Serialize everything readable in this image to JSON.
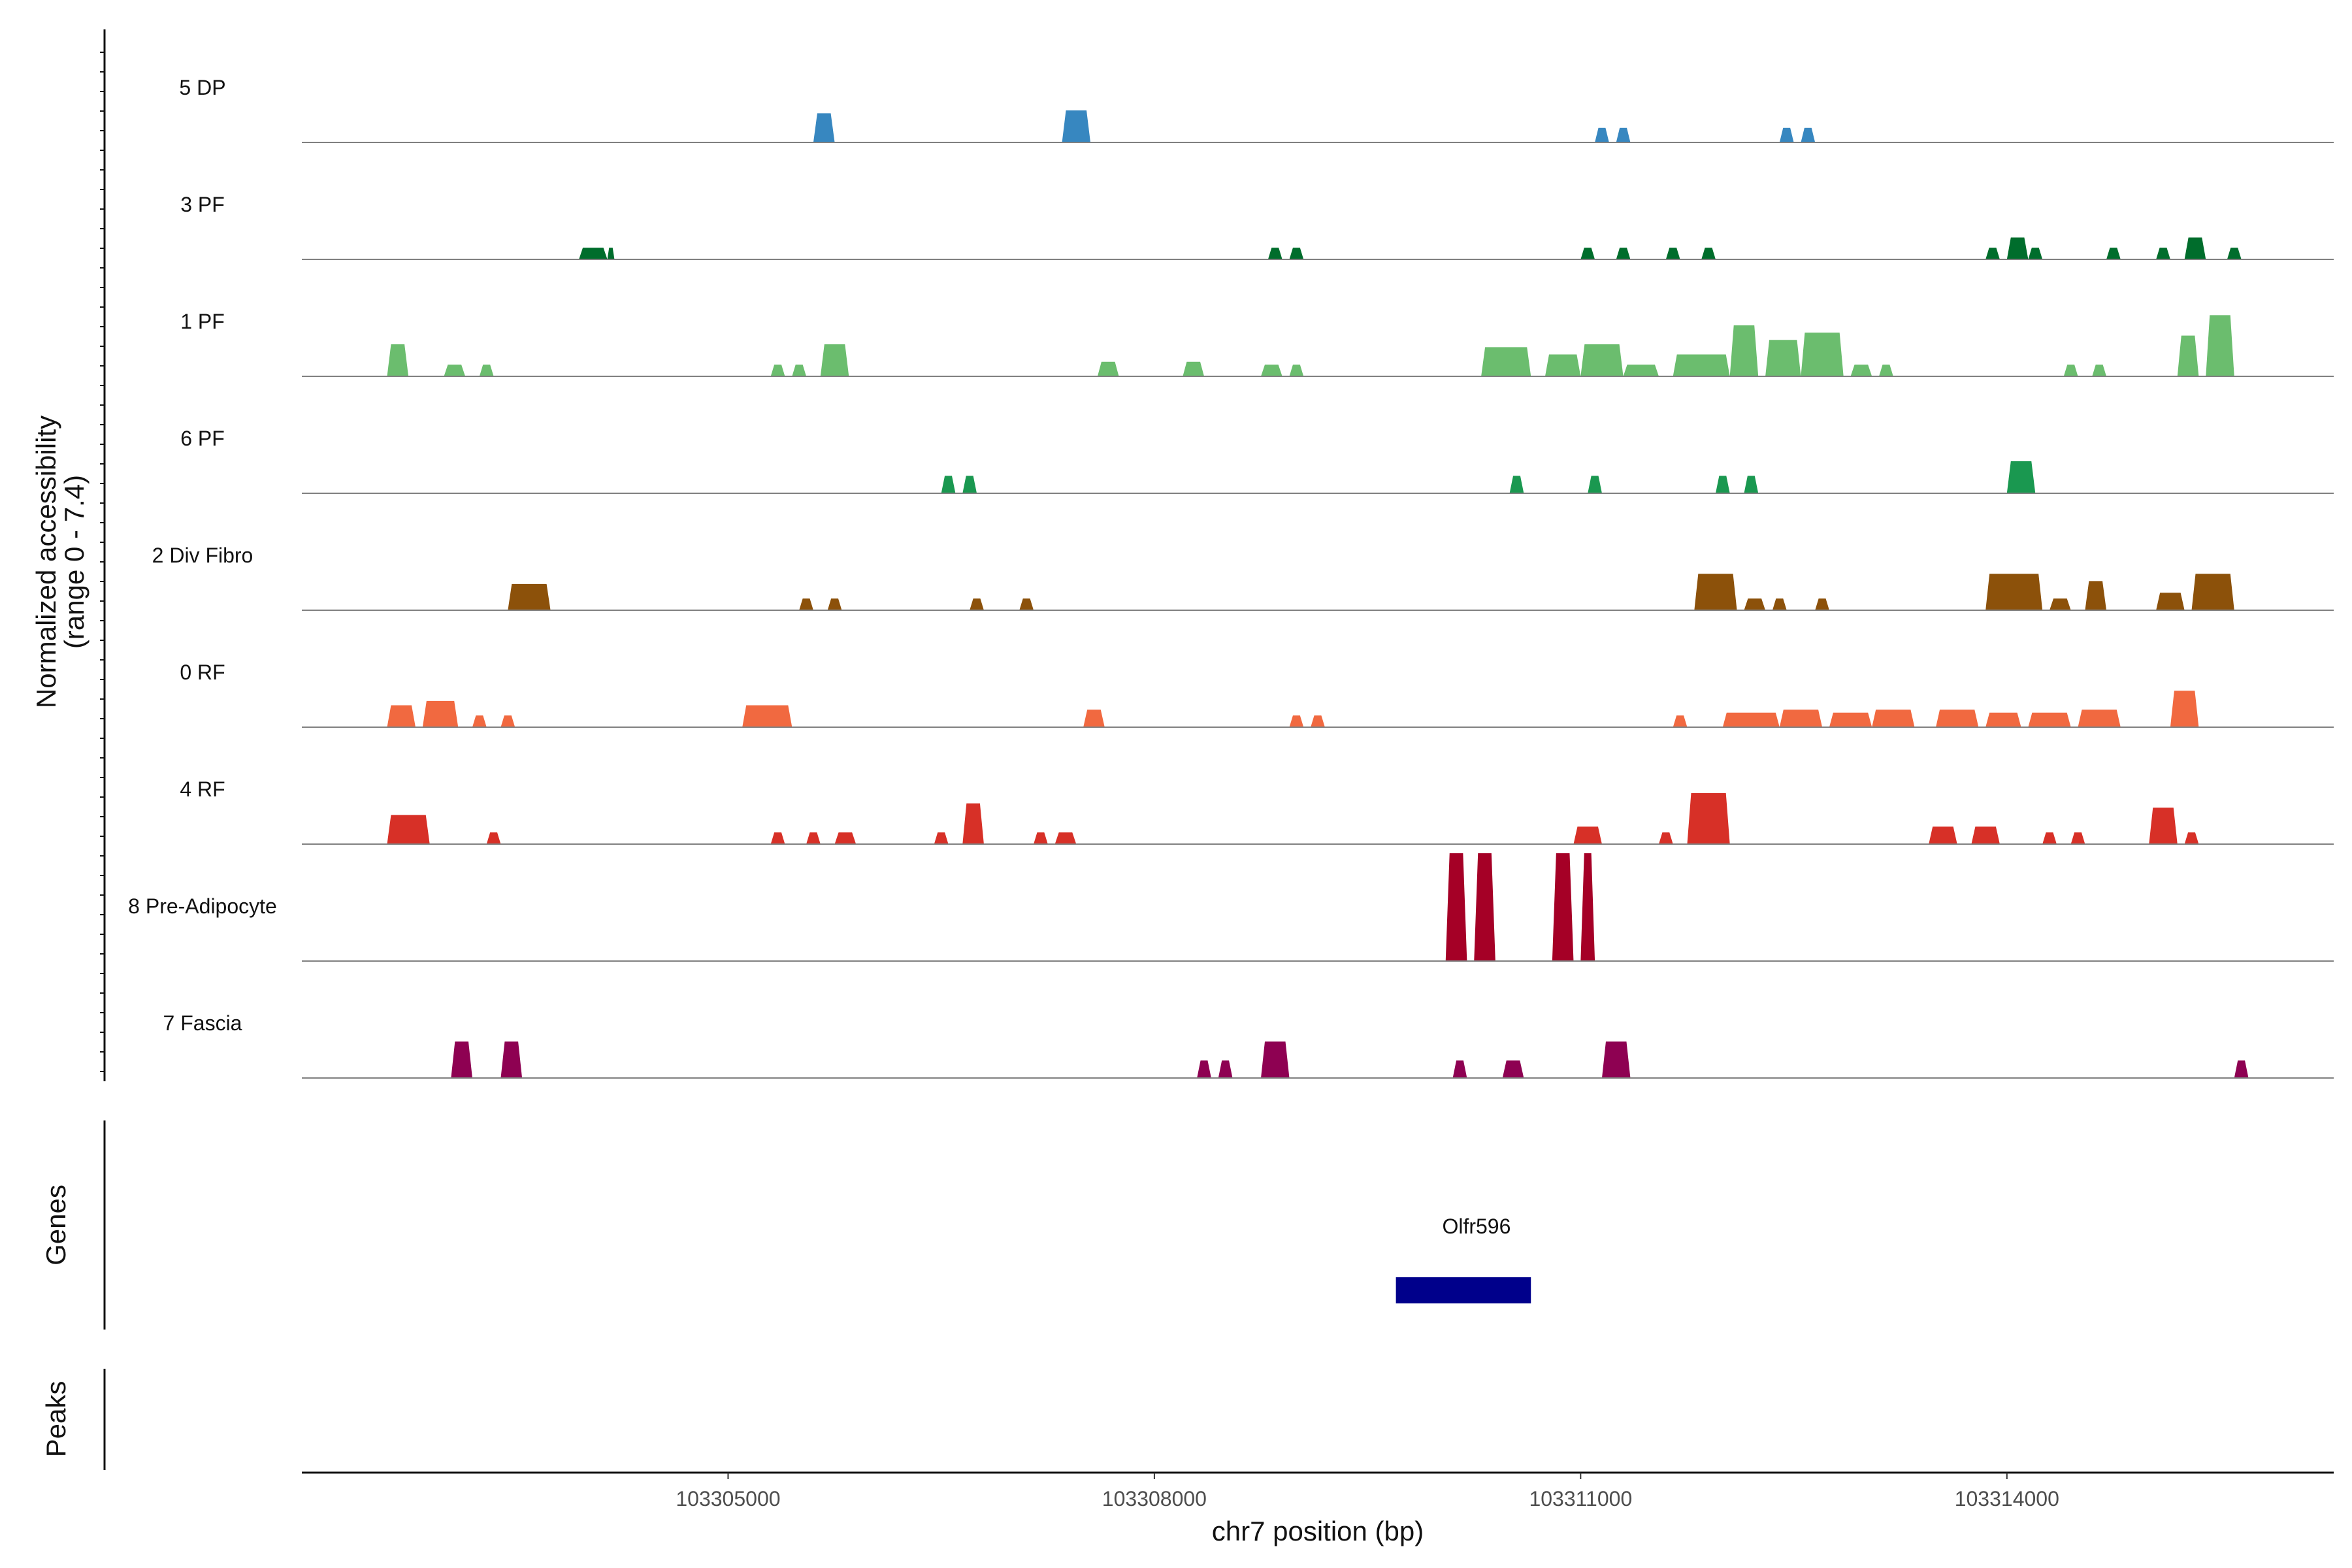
{
  "chart_data": {
    "type": "area",
    "description_type": "genome coverage tracks",
    "xlabel": "chr7 position (bp)",
    "xlim": [
      103302000,
      103316300
    ],
    "xticks": [
      103305000,
      103308000,
      103311000,
      103314000
    ],
    "xtick_labels": [
      "103305000",
      "103308000",
      "103311000",
      "103314000"
    ],
    "ylabel_line1": "Normalized accessibility",
    "ylabel_line2": "(range 0 - 7.4)",
    "ylim": [
      0,
      7.4
    ],
    "panel_labels": {
      "genes": "Genes",
      "peaks": "Peaks"
    },
    "tracks": [
      {
        "name": "5 DP",
        "color": "#3787c0",
        "peaks": [
          [
            103305600,
            103305750,
            2.0
          ],
          [
            103307350,
            103307550,
            2.2
          ],
          [
            103311100,
            103311200,
            1.0
          ],
          [
            103311250,
            103311350,
            1.0
          ],
          [
            103312400,
            103312500,
            1.0
          ],
          [
            103312550,
            103312650,
            1.0
          ]
        ]
      },
      {
        "name": "3 PF",
        "color": "#006d2c",
        "peaks": [
          [
            103303950,
            103304150,
            0.8
          ],
          [
            103304150,
            103304200,
            0.8
          ],
          [
            103308800,
            103308900,
            0.8
          ],
          [
            103308950,
            103309050,
            0.8
          ],
          [
            103311000,
            103311100,
            0.8
          ],
          [
            103311250,
            103311350,
            0.8
          ],
          [
            103311600,
            103311700,
            0.8
          ],
          [
            103311850,
            103311950,
            0.8
          ],
          [
            103313850,
            103313950,
            0.8
          ],
          [
            103314000,
            103314150,
            1.5
          ],
          [
            103314150,
            103314250,
            0.8
          ],
          [
            103314700,
            103314800,
            0.8
          ],
          [
            103315050,
            103315150,
            0.8
          ],
          [
            103315250,
            103315400,
            1.5
          ],
          [
            103315550,
            103315650,
            0.8
          ]
        ]
      },
      {
        "name": "1 PF",
        "color": "#6bbd6e",
        "peaks": [
          [
            103302600,
            103302750,
            2.2
          ],
          [
            103303000,
            103303150,
            0.8
          ],
          [
            103303250,
            103303350,
            0.8
          ],
          [
            103305300,
            103305400,
            0.8
          ],
          [
            103305450,
            103305550,
            0.8
          ],
          [
            103305650,
            103305850,
            2.2
          ],
          [
            103307600,
            103307750,
            1.0
          ],
          [
            103308200,
            103308350,
            1.0
          ],
          [
            103308750,
            103308900,
            0.8
          ],
          [
            103308950,
            103309050,
            0.8
          ],
          [
            103310300,
            103310650,
            2.0
          ],
          [
            103310750,
            103311000,
            1.5
          ],
          [
            103311000,
            103311300,
            2.2
          ],
          [
            103311300,
            103311550,
            0.8
          ],
          [
            103311650,
            103312050,
            1.5
          ],
          [
            103312050,
            103312250,
            3.5
          ],
          [
            103312300,
            103312550,
            2.5
          ],
          [
            103312550,
            103312850,
            3.0
          ],
          [
            103312900,
            103313050,
            0.8
          ],
          [
            103313100,
            103313200,
            0.8
          ],
          [
            103314400,
            103314500,
            0.8
          ],
          [
            103314600,
            103314700,
            0.8
          ],
          [
            103315200,
            103315350,
            2.8
          ],
          [
            103315400,
            103315600,
            4.2
          ]
        ]
      },
      {
        "name": "6 PF",
        "color": "#1a9850",
        "peaks": [
          [
            103306500,
            103306600,
            1.2
          ],
          [
            103306650,
            103306750,
            1.2
          ],
          [
            103310500,
            103310600,
            1.2
          ],
          [
            103311050,
            103311150,
            1.2
          ],
          [
            103311950,
            103312050,
            1.2
          ],
          [
            103312150,
            103312250,
            1.2
          ],
          [
            103314000,
            103314200,
            2.2
          ]
        ]
      },
      {
        "name": "2 Div Fibro",
        "color": "#8c510a",
        "peaks": [
          [
            103303450,
            103303750,
            1.8
          ],
          [
            103305500,
            103305600,
            0.8
          ],
          [
            103305700,
            103305800,
            0.8
          ],
          [
            103306700,
            103306800,
            0.8
          ],
          [
            103307050,
            103307150,
            0.8
          ],
          [
            103311800,
            103312100,
            2.5
          ],
          [
            103312150,
            103312300,
            0.8
          ],
          [
            103312350,
            103312450,
            0.8
          ],
          [
            103312650,
            103312750,
            0.8
          ],
          [
            103313850,
            103314250,
            2.5
          ],
          [
            103314300,
            103314450,
            0.8
          ],
          [
            103314550,
            103314700,
            2.0
          ],
          [
            103315050,
            103315250,
            1.2
          ],
          [
            103315300,
            103315600,
            2.5
          ]
        ]
      },
      {
        "name": "0 RF",
        "color": "#f16940",
        "peaks": [
          [
            103302600,
            103302800,
            1.5
          ],
          [
            103302850,
            103303100,
            1.8
          ],
          [
            103303200,
            103303300,
            0.8
          ],
          [
            103303400,
            103303500,
            0.8
          ],
          [
            103305100,
            103305450,
            1.5
          ],
          [
            103307500,
            103307650,
            1.2
          ],
          [
            103308950,
            103309050,
            0.8
          ],
          [
            103309100,
            103309200,
            0.8
          ],
          [
            103311650,
            103311750,
            0.8
          ],
          [
            103312000,
            103312400,
            1.0
          ],
          [
            103312400,
            103312700,
            1.2
          ],
          [
            103312750,
            103313050,
            1.0
          ],
          [
            103313050,
            103313350,
            1.2
          ],
          [
            103313500,
            103313800,
            1.2
          ],
          [
            103313850,
            103314100,
            1.0
          ],
          [
            103314150,
            103314450,
            1.0
          ],
          [
            103314500,
            103314800,
            1.2
          ],
          [
            103315150,
            103315350,
            2.5
          ]
        ]
      },
      {
        "name": "4 RF",
        "color": "#d73027",
        "peaks": [
          [
            103302600,
            103302900,
            2.0
          ],
          [
            103303300,
            103303400,
            0.8
          ],
          [
            103305300,
            103305400,
            0.8
          ],
          [
            103305550,
            103305650,
            0.8
          ],
          [
            103305750,
            103305900,
            0.8
          ],
          [
            103306450,
            103306550,
            0.8
          ],
          [
            103306650,
            103306800,
            2.8
          ],
          [
            103307150,
            103307250,
            0.8
          ],
          [
            103307300,
            103307450,
            0.8
          ],
          [
            103310950,
            103311150,
            1.2
          ],
          [
            103311550,
            103311650,
            0.8
          ],
          [
            103311750,
            103312050,
            3.5
          ],
          [
            103313450,
            103313650,
            1.2
          ],
          [
            103313750,
            103313950,
            1.2
          ],
          [
            103314250,
            103314350,
            0.8
          ],
          [
            103314450,
            103314550,
            0.8
          ],
          [
            103315000,
            103315200,
            2.5
          ],
          [
            103315250,
            103315350,
            0.8
          ]
        ]
      },
      {
        "name": "8 Pre-Adipocyte",
        "color": "#a50026",
        "peaks": [
          [
            103310050,
            103310200,
            7.4
          ],
          [
            103310250,
            103310400,
            7.4
          ],
          [
            103310800,
            103310950,
            7.4
          ],
          [
            103311000,
            103311100,
            7.4
          ]
        ]
      },
      {
        "name": "7 Fascia",
        "color": "#8e0152",
        "peaks": [
          [
            103303050,
            103303200,
            2.5
          ],
          [
            103303400,
            103303550,
            2.5
          ],
          [
            103308300,
            103308400,
            1.2
          ],
          [
            103308450,
            103308550,
            1.2
          ],
          [
            103308750,
            103308950,
            2.5
          ],
          [
            103310100,
            103310200,
            1.2
          ],
          [
            103310450,
            103310600,
            1.2
          ],
          [
            103311150,
            103311350,
            2.5
          ],
          [
            103315600,
            103315700,
            1.2
          ]
        ]
      }
    ],
    "genes": [
      {
        "name": "Olfr596",
        "start": 103309700,
        "end": 103310650,
        "color": "#00008b"
      }
    ]
  }
}
